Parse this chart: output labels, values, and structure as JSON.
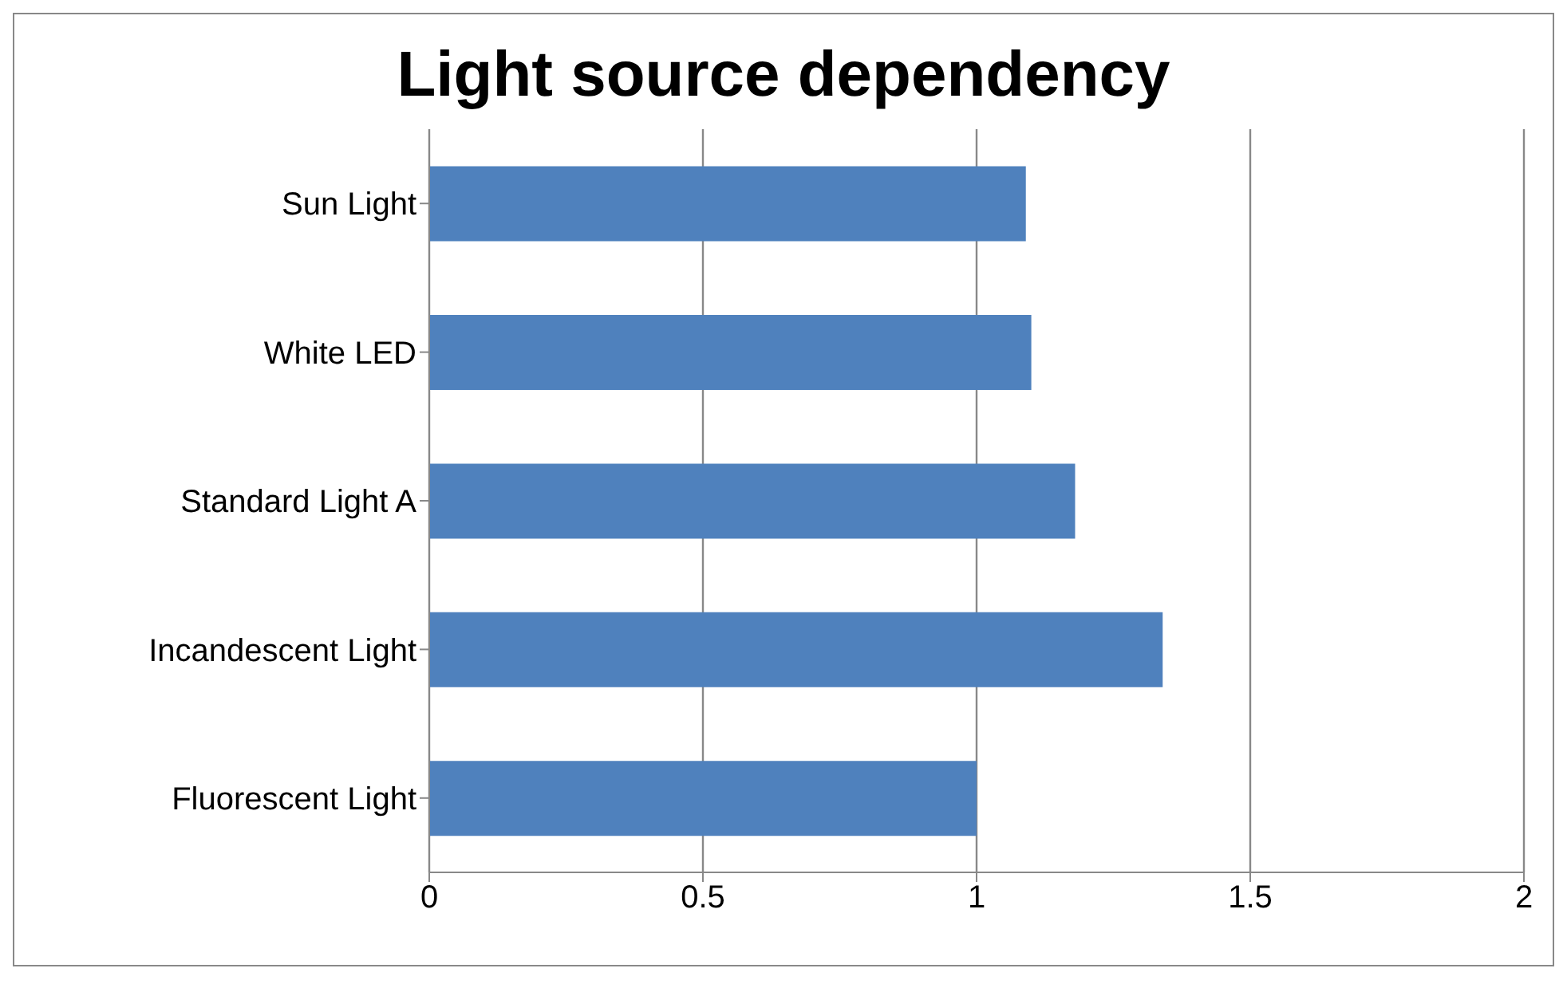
{
  "chart_data": {
    "type": "bar",
    "title": "Light source dependency",
    "orientation": "horizontal",
    "categories": [
      "Sun Light",
      "White LED",
      "Standard Light A",
      "Incandescent Light",
      "Fluorescent Light"
    ],
    "values": [
      1.09,
      1.1,
      1.18,
      1.34,
      1.0
    ],
    "color": "#4f81bd",
    "xlim": [
      0,
      2
    ],
    "xticks": [
      0,
      0.5,
      1,
      1.5,
      2
    ],
    "grid": "x"
  }
}
